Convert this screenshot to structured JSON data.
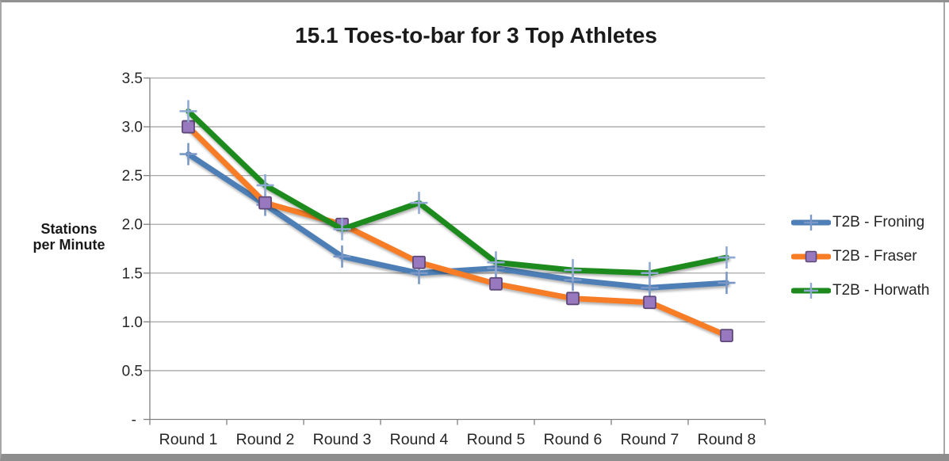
{
  "chart_data": {
    "type": "line",
    "title": "15.1 Toes-to-bar for 3 Top Athletes",
    "ylabel_lines": [
      "Stations",
      "per Minute"
    ],
    "categories": [
      "Round 1",
      "Round 2",
      "Round 3",
      "Round 4",
      "Round 5",
      "Round 6",
      "Round 7",
      "Round 8"
    ],
    "series": [
      {
        "name": "T2B - Froning",
        "color": "#4E7FB6",
        "marker": "plus",
        "marker_color": "#7A97C5",
        "values": [
          2.72,
          2.2,
          1.67,
          1.5,
          1.55,
          1.43,
          1.35,
          1.4
        ]
      },
      {
        "name": "T2B - Fraser",
        "color": "#F67C26",
        "marker": "square",
        "marker_color": "#9878BE",
        "marker_border": "#5F497A",
        "values": [
          3.0,
          2.22,
          2.0,
          1.61,
          1.39,
          1.24,
          1.2,
          0.86
        ]
      },
      {
        "name": "T2B - Horwath",
        "color": "#1E8A1E",
        "marker": "plus",
        "marker_color": "#8FA9D4",
        "values": [
          3.16,
          2.4,
          1.95,
          2.22,
          1.61,
          1.53,
          1.5,
          1.66
        ]
      }
    ],
    "ylim": [
      0,
      3.5
    ],
    "ytick_step": 0.5,
    "ytick_labels": [
      "-",
      "0.5",
      "1.0",
      "1.5",
      "2.0",
      "2.5",
      "3.0",
      "3.5"
    ],
    "grid": true,
    "legend_position": "right",
    "colors": {
      "gridline": "#A6A6A6",
      "axis": "#808080",
      "tick_text": "#262626",
      "title_text": "#1A1A1A"
    }
  }
}
